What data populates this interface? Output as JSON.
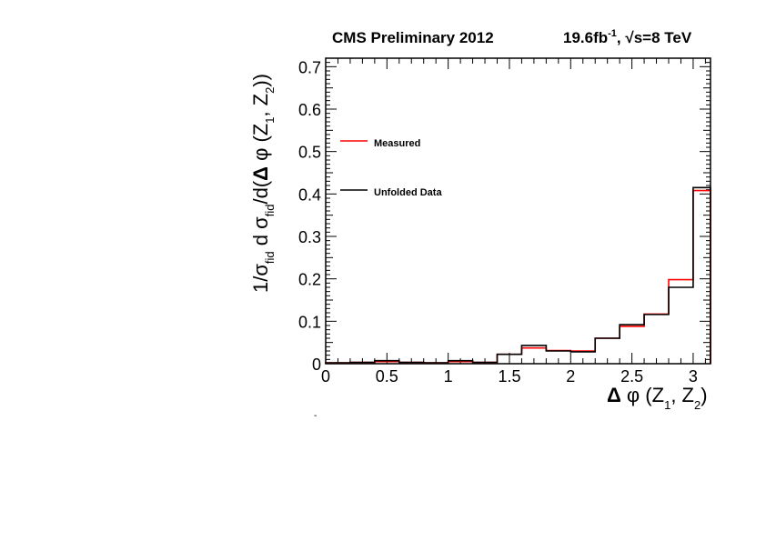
{
  "chart_data": {
    "type": "line",
    "style": "step-histogram",
    "title_left": "CMS Preliminary 2012",
    "title_right": {
      "lumi": "19.6",
      "lumi_unit": "fb",
      "lumi_exp": "-1",
      "energy": ", √s=8 TeV"
    },
    "xlabel": "Δ φ (Z1, Z2)",
    "ylabel": "1/σfid d σfid/d(Δ φ (Z1, Z2))",
    "xlim": [
      0,
      3.1416
    ],
    "ylim": [
      0,
      0.72
    ],
    "xticks": [
      "0",
      "0.5",
      "1",
      "1.5",
      "2",
      "2.5",
      "3"
    ],
    "yticks": [
      "0",
      "0.1",
      "0.2",
      "0.3",
      "0.4",
      "0.5",
      "0.6",
      "0.7"
    ],
    "legend_position": "left",
    "bin_edges": [
      0,
      0.2,
      0.4,
      0.6,
      0.8,
      1.0,
      1.2,
      1.4,
      1.6,
      1.8,
      2.0,
      2.2,
      2.4,
      2.6,
      2.8,
      3.0,
      3.1416
    ],
    "series": [
      {
        "name": "Measured",
        "color": "#ff0000",
        "values": [
          0.002,
          0.003,
          0.005,
          0.003,
          0.002,
          0.005,
          0.003,
          0.022,
          0.037,
          0.031,
          0.03,
          0.06,
          0.088,
          0.117,
          0.198,
          0.408
        ]
      },
      {
        "name": "Unfolded Data",
        "color": "#000000",
        "values": [
          0.002,
          0.003,
          0.007,
          0.003,
          0.002,
          0.007,
          0.003,
          0.022,
          0.043,
          0.03,
          0.028,
          0.06,
          0.092,
          0.116,
          0.18,
          0.415
        ]
      }
    ]
  },
  "footer_mark": "-"
}
